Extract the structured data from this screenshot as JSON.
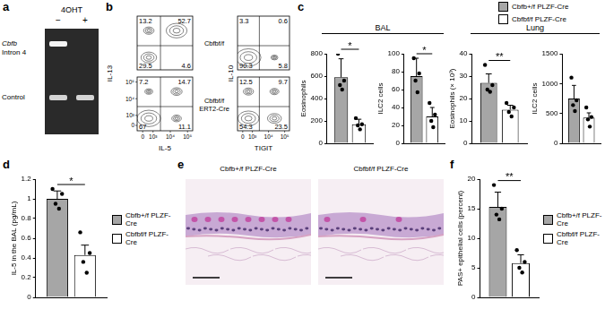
{
  "panel_labels": [
    "a",
    "b",
    "c",
    "d",
    "e",
    "f"
  ],
  "gel": {
    "treatment": "4OHT",
    "lanes": [
      "−",
      "+"
    ],
    "rows": [
      {
        "label": [
          "Cbfb",
          "Intron 4"
        ],
        "bands": [
          true,
          false
        ]
      },
      {
        "label": [
          "Control"
        ],
        "bands": [
          true,
          true
        ]
      }
    ]
  },
  "flow": {
    "rows": [
      {
        "label": [
          "Cbfbf/f"
        ]
      },
      {
        "label": [
          "Cbfbf/f",
          "ERT2-Cre"
        ]
      }
    ],
    "columns": [
      {
        "x_label": "IL-5",
        "y_label": "IL-13"
      },
      {
        "x_label": "TIGIT",
        "y_label": "IL-10"
      }
    ],
    "ticks": [
      0,
      {
        "value": 1000,
        "label": "10³"
      },
      {
        "value": 10000,
        "label": "10⁴"
      },
      {
        "value": 100000,
        "label": "10⁵"
      }
    ],
    "plots": [
      [
        {
          "upper_left": 13.2,
          "upper_right": 52.7,
          "lower_left": 29.5,
          "lower_right": 4.6
        },
        {
          "upper_left": 3.3,
          "upper_right": 0.6,
          "lower_left": 90.3,
          "lower_right": 5.8
        }
      ],
      [
        {
          "upper_left": 7.2,
          "upper_right": 14.7,
          "lower_left": 67,
          "lower_right": 11.1
        },
        {
          "upper_left": 12.5,
          "upper_right": 9.7,
          "lower_left": 54.3,
          "lower_right": 23.5
        }
      ]
    ]
  },
  "groups": [
    "BAL",
    "Lung"
  ],
  "chart_data": [
    {
      "type": "bar",
      "y_label": "Eosinophils",
      "categories": [
        null
      ],
      "series": [
        {
          "name": "Cbfb+/f PLZF-Cre",
          "color": "#a6a6a6",
          "values": [
            590
          ],
          "errors": [
            165
          ],
          "points": [
            [
              800,
              560,
              520,
              480
            ]
          ]
        },
        {
          "name": "Cbfbf/f PLZF-Cre",
          "color": "#ffffff",
          "values": [
            170
          ],
          "errors": [
            45
          ],
          "points": [
            [
              225,
              170,
              160,
              125
            ]
          ]
        }
      ],
      "significance": "*",
      "ylim": [
        0,
        800
      ],
      "yticks": [
        0,
        200,
        400,
        600,
        800
      ],
      "grid": false,
      "tick_labels": "y"
    },
    {
      "type": "bar",
      "y_label": "ILC2 cells",
      "categories": [
        null
      ],
      "series": [
        {
          "name": "Cbfb+/f PLZF-Cre",
          "color": "#a6a6a6",
          "values": [
            75
          ],
          "errors": [
            20
          ],
          "points": [
            [
              95,
              78,
              70,
              57
            ]
          ]
        },
        {
          "name": "Cbfbf/f PLZF-Cre",
          "color": "#ffffff",
          "values": [
            30
          ],
          "errors": [
            10
          ],
          "points": [
            [
              45,
              32,
              25,
              18
            ]
          ]
        }
      ],
      "significance": "*",
      "ylim": [
        0,
        100
      ],
      "yticks": [
        0,
        20,
        40,
        60,
        80,
        100
      ],
      "grid": false,
      "tick_labels": "y"
    },
    {
      "type": "bar",
      "y_label": "Eosinophils (× 10³)",
      "categories": [
        null
      ],
      "series": [
        {
          "name": "Cbfb+/f PLZF-Cre",
          "color": "#a6a6a6",
          "values": [
            27
          ],
          "errors": [
            4
          ],
          "points": [
            [
              35,
              26,
              24,
              23
            ]
          ]
        },
        {
          "name": "Cbfbf/f PLZF-Cre",
          "color": "#ffffff",
          "values": [
            15
          ],
          "errors": [
            2
          ],
          "points": [
            [
              18,
              16,
              14,
              12
            ]
          ]
        }
      ],
      "significance": "**",
      "ylim": [
        0,
        40
      ],
      "yticks": [
        0,
        10,
        20,
        30,
        40
      ],
      "grid": false,
      "tick_labels": "y"
    },
    {
      "type": "bar",
      "y_label": "ILC2 cells",
      "categories": [
        null
      ],
      "series": [
        {
          "name": "Cbfb+/f PLZF-Cre",
          "color": "#a6a6a6",
          "values": [
            750
          ],
          "errors": [
            220
          ],
          "points": [
            [
              1100,
              720,
              640,
              540
            ]
          ]
        },
        {
          "name": "Cbfbf/f PLZF-Cre",
          "color": "#ffffff",
          "values": [
            430
          ],
          "errors": [
            80
          ],
          "points": [
            [
              600,
              440,
              400,
              280
            ]
          ]
        }
      ],
      "ylim": [
        0,
        1500
      ],
      "yticks": [
        0,
        500,
        1000,
        1500
      ],
      "grid": false,
      "tick_labels": "y",
      "legend": "top right"
    },
    {
      "type": "bar",
      "y_label": "IL-5 in the BAL (pg/mL)",
      "categories": [
        null
      ],
      "series": [
        {
          "name": "Cbfb+/f PLZF-Cre",
          "color": "#a6a6a6",
          "values": [
            1
          ],
          "errors": [
            0.08
          ],
          "points": [
            [
              1.1,
              1.05,
              0.95,
              0.9
            ]
          ]
        },
        {
          "name": "Cbfbf/f PLZF-Cre",
          "color": "#ffffff",
          "values": [
            0.43
          ],
          "errors": [
            0.1
          ],
          "points": [
            [
              0.66,
              0.45,
              0.36,
              0.25
            ]
          ]
        }
      ],
      "significance": "*",
      "ylim": [
        0,
        1.2
      ],
      "yticks": [
        0,
        0.2,
        0.4,
        0.6,
        0.8,
        1,
        1.2
      ],
      "grid": false,
      "tick_labels": "y",
      "legend": "right"
    },
    {
      "type": "bar",
      "y_label": "PAS+ epithelial cells (percent)",
      "categories": [
        null
      ],
      "series": [
        {
          "name": "Cbfb+/f PLZF-Cre",
          "color": "#a6a6a6",
          "values": [
            15.3
          ],
          "errors": [
            2.5
          ],
          "points": [
            [
              19,
              15,
              14,
              13.2
            ]
          ]
        },
        {
          "name": "Cbfbf/f PLZF-Cre",
          "color": "#ffffff",
          "values": [
            5.8
          ],
          "errors": [
            1.4
          ],
          "points": [
            [
              8,
              6,
              5,
              4.2
            ]
          ]
        }
      ],
      "significance": "**",
      "ylim": [
        0,
        20
      ],
      "yticks": [
        0,
        5,
        10,
        15,
        20
      ],
      "grid": false,
      "tick_labels": "y",
      "legend": "right"
    }
  ],
  "histology": {
    "titles": [
      "Cbfb+/f PLZF-Cre",
      "Cbfbf/f PLZF-Cre"
    ]
  }
}
